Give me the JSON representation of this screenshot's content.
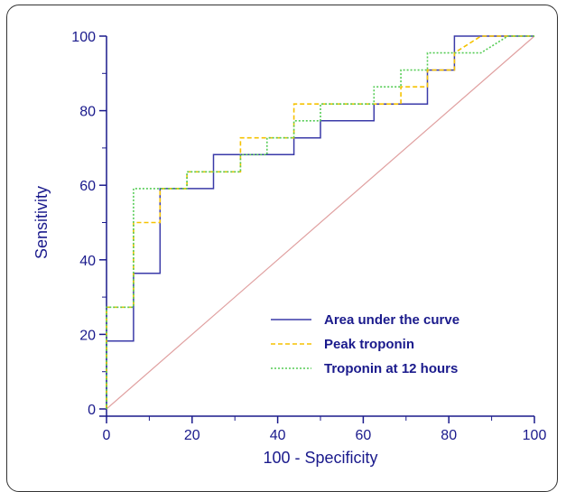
{
  "chart_data": {
    "type": "line",
    "xlabel": "100 - Specificity",
    "ylabel": "Sensitivity",
    "xlim": [
      0,
      100
    ],
    "ylim": [
      0,
      100
    ],
    "x_ticks": [
      0,
      20,
      40,
      60,
      80,
      100
    ],
    "y_ticks": [
      0,
      20,
      40,
      60,
      80,
      100
    ],
    "legend_position": "bottom-right",
    "series": [
      {
        "name": "Area under the curve",
        "color": "#3a3aa8",
        "style": "solid",
        "points": [
          [
            0,
            0
          ],
          [
            0,
            18.2
          ],
          [
            6.3,
            18.2
          ],
          [
            6.3,
            36.4
          ],
          [
            12.5,
            36.4
          ],
          [
            12.5,
            59.1
          ],
          [
            25,
            59.1
          ],
          [
            25,
            68.2
          ],
          [
            43.8,
            68.2
          ],
          [
            43.8,
            72.7
          ],
          [
            50,
            72.7
          ],
          [
            50,
            77.3
          ],
          [
            62.5,
            77.3
          ],
          [
            62.5,
            81.8
          ],
          [
            75,
            81.8
          ],
          [
            75,
            90.9
          ],
          [
            81.3,
            90.9
          ],
          [
            81.3,
            100
          ],
          [
            100,
            100
          ]
        ]
      },
      {
        "name": "Peak troponin",
        "color": "#f5c200",
        "style": "dashed",
        "points": [
          [
            0,
            0
          ],
          [
            0,
            27.3
          ],
          [
            6.3,
            27.3
          ],
          [
            6.3,
            50
          ],
          [
            12.5,
            50
          ],
          [
            12.5,
            59.1
          ],
          [
            18.8,
            59.1
          ],
          [
            18.8,
            63.6
          ],
          [
            31.3,
            63.6
          ],
          [
            31.3,
            72.7
          ],
          [
            43.8,
            72.7
          ],
          [
            43.8,
            81.8
          ],
          [
            62.5,
            81.8
          ],
          [
            68.8,
            81.8
          ],
          [
            68.8,
            86.4
          ],
          [
            75,
            86.4
          ],
          [
            75,
            90.9
          ],
          [
            81.3,
            90.9
          ],
          [
            81.3,
            95.5
          ],
          [
            87.5,
            100
          ],
          [
            100,
            100
          ]
        ]
      },
      {
        "name": "Troponin at 12 hours",
        "color": "#55cc55",
        "style": "dotted",
        "points": [
          [
            0,
            0
          ],
          [
            0,
            27.3
          ],
          [
            6.3,
            27.3
          ],
          [
            6.3,
            59.1
          ],
          [
            18.8,
            59.1
          ],
          [
            18.8,
            63.6
          ],
          [
            31.3,
            63.6
          ],
          [
            31.3,
            68.2
          ],
          [
            37.5,
            68.2
          ],
          [
            37.5,
            72.7
          ],
          [
            43.8,
            72.7
          ],
          [
            43.8,
            77.3
          ],
          [
            50,
            77.3
          ],
          [
            50,
            81.8
          ],
          [
            62.5,
            81.8
          ],
          [
            62.5,
            86.4
          ],
          [
            68.8,
            86.4
          ],
          [
            68.8,
            90.9
          ],
          [
            75,
            90.9
          ],
          [
            75,
            95.5
          ],
          [
            87.5,
            95.5
          ],
          [
            93.8,
            100
          ],
          [
            100,
            100
          ]
        ]
      }
    ],
    "reference_line": {
      "points": [
        [
          0,
          0
        ],
        [
          100,
          100
        ]
      ],
      "color": "#e0a0a0"
    }
  }
}
